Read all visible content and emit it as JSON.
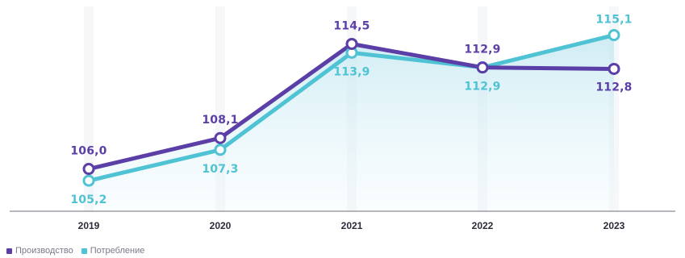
{
  "chart_data": {
    "type": "line",
    "categories": [
      "2019",
      "2020",
      "2021",
      "2022",
      "2023"
    ],
    "series": [
      {
        "name": "Производство",
        "values": [
          106.0,
          108.1,
          114.5,
          112.9,
          112.8
        ],
        "labels": [
          "106,0",
          "108,1",
          "114,5",
          "112,9",
          "112,8"
        ],
        "color": "#5b3fa7"
      },
      {
        "name": "Потребление",
        "values": [
          105.2,
          107.3,
          113.9,
          112.9,
          115.1
        ],
        "labels": [
          "105,2",
          "107,3",
          "113,9",
          "112,9",
          "115,1"
        ],
        "color": "#4fc3d4"
      }
    ],
    "ylim": [
      104,
      116.5
    ],
    "legend_position": "bottom-left",
    "grid": false,
    "area_fill_color": "#d6eff6",
    "axis_color": "#6e6e7a"
  }
}
